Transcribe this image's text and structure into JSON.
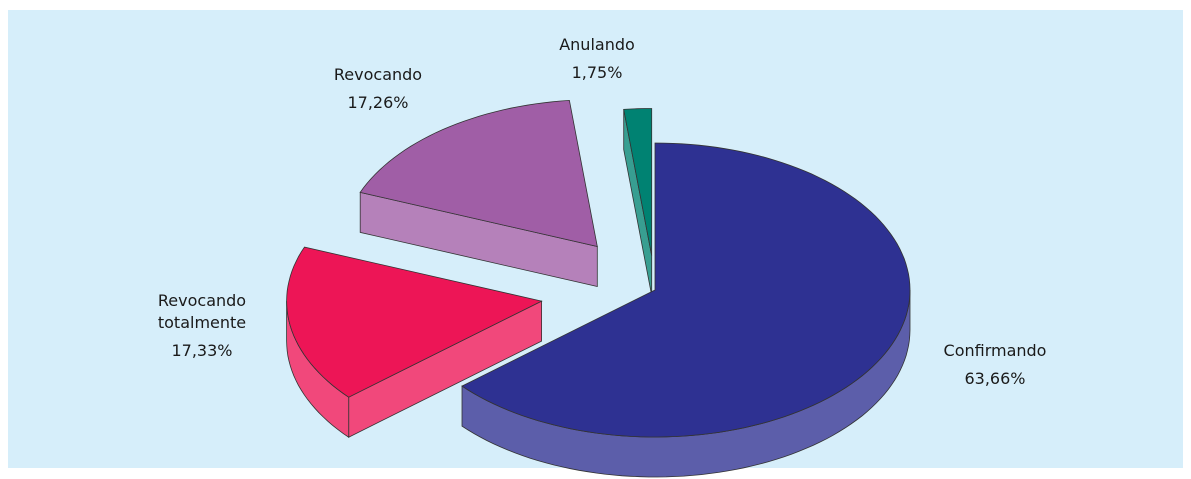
{
  "chart_data": {
    "type": "pie",
    "categories": [
      "Confirmando",
      "Revocando totalmente",
      "Revocando",
      "Anulando"
    ],
    "values": [
      63.66,
      17.33,
      17.26,
      1.75
    ],
    "value_labels": [
      "63,66%",
      "17,33%",
      "17,26%",
      "1,75%"
    ],
    "colors": [
      "#2e3192",
      "#ed1556",
      "#a05ea6",
      "#008272"
    ]
  }
}
